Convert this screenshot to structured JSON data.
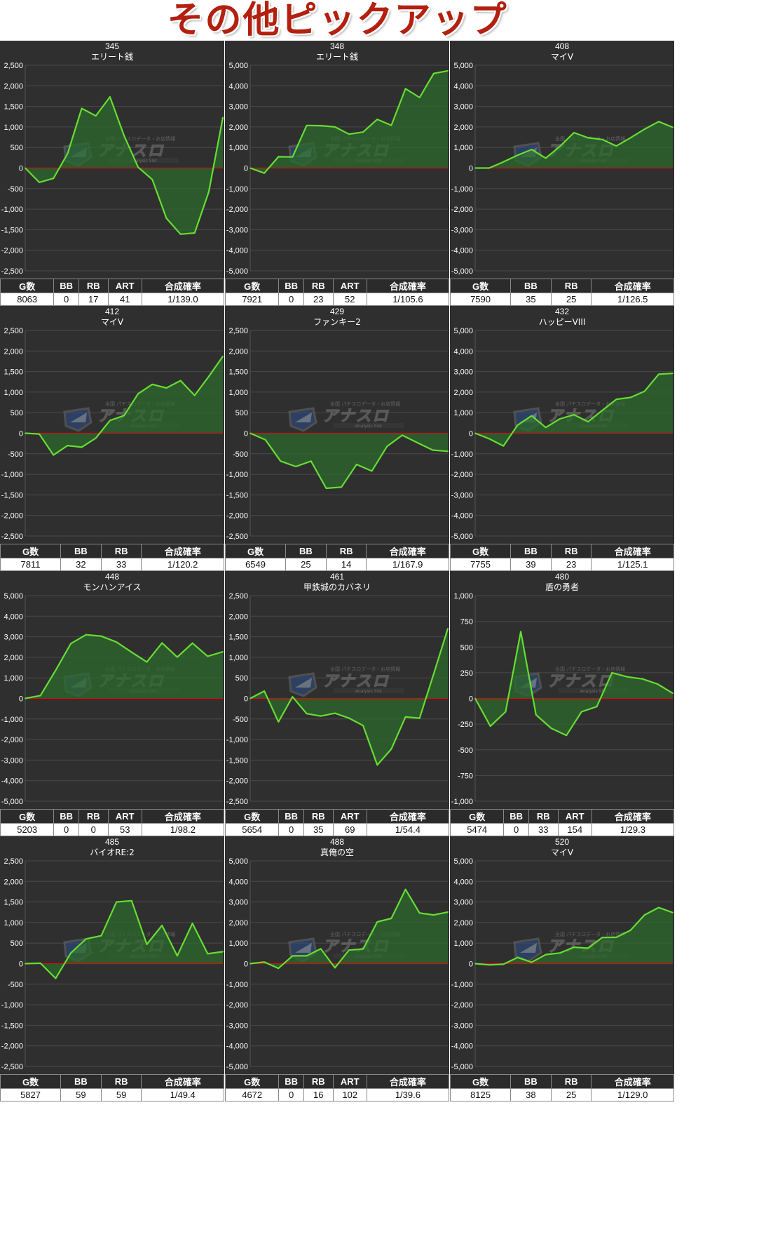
{
  "page": {
    "title": "その他ピックアップ"
  },
  "colors": {
    "line": "#66dd33",
    "fill": "#2c6a2c",
    "zero_line": "#cc1111",
    "panel_bg": "#2f2f2f",
    "grid": "#4a4a4a"
  },
  "watermark": {
    "sub1": "全国 パチスロデータ・お店情報",
    "brand": "アナスロ",
    "sub2": "Analysis Slot"
  },
  "chart_data": [
    {
      "type": "area",
      "title": "345",
      "subtitle": "エリート銭",
      "ylim": [
        -2500,
        2500
      ],
      "ticks": [
        "2,500",
        "2,000",
        "1,500",
        "1,000",
        "500",
        "0",
        "-500",
        "-1,000",
        "-1,500",
        "-2,000",
        "-2,500"
      ],
      "values": [
        0,
        -350,
        -250,
        350,
        1450,
        1270,
        1730,
        790,
        20,
        -280,
        -1220,
        -1610,
        -1580,
        -580,
        1230
      ],
      "headers": [
        "G数",
        "BB",
        "RB",
        "ART",
        "合成確率"
      ],
      "row": [
        "8063",
        "0",
        "17",
        "41",
        "1/139.0"
      ]
    },
    {
      "type": "area",
      "title": "348",
      "subtitle": "エリート銭",
      "ylim": [
        -5000,
        5000
      ],
      "ticks": [
        "5,000",
        "4,000",
        "3,000",
        "2,000",
        "1,000",
        "0",
        "-1,000",
        "-2,000",
        "-3,000",
        "-4,000",
        "-5,000"
      ],
      "values": [
        0,
        -250,
        550,
        540,
        2070,
        2060,
        2000,
        1650,
        1750,
        2370,
        2080,
        3860,
        3430,
        4600,
        4730
      ],
      "headers": [
        "G数",
        "BB",
        "RB",
        "ART",
        "合成確率"
      ],
      "row": [
        "7921",
        "0",
        "23",
        "52",
        "1/105.6"
      ]
    },
    {
      "type": "area",
      "title": "408",
      "subtitle": "マイV",
      "ylim": [
        -5000,
        5000
      ],
      "ticks": [
        "5,000",
        "4,000",
        "3,000",
        "2,000",
        "1,000",
        "0",
        "-1,000",
        "-2,000",
        "-3,000",
        "-4,000",
        "-5,000"
      ],
      "values": [
        0,
        0,
        300,
        620,
        900,
        480,
        1050,
        1720,
        1470,
        1390,
        1070,
        1470,
        1890,
        2260,
        1980
      ],
      "headers": [
        "G数",
        "BB",
        "RB",
        "合成確率"
      ],
      "row": [
        "7590",
        "35",
        "25",
        "1/126.5"
      ]
    },
    {
      "type": "area",
      "title": "412",
      "subtitle": "マイV",
      "ylim": [
        -2500,
        2500
      ],
      "ticks": [
        "2,500",
        "2,000",
        "1,500",
        "1,000",
        "500",
        "0",
        "-500",
        "-1,000",
        "-1,500",
        "-2,000",
        "-2,500"
      ],
      "values": [
        0,
        -20,
        -530,
        -300,
        -340,
        -120,
        310,
        430,
        960,
        1190,
        1100,
        1280,
        920,
        1380,
        1870
      ],
      "headers": [
        "G数",
        "BB",
        "RB",
        "合成確率"
      ],
      "row": [
        "7811",
        "32",
        "33",
        "1/120.2"
      ]
    },
    {
      "type": "area",
      "title": "429",
      "subtitle": "ファンキー2",
      "ylim": [
        -2500,
        2500
      ],
      "ticks": [
        "2,500",
        "2,000",
        "1,500",
        "1,000",
        "500",
        "0",
        "-500",
        "-1,000",
        "-1,500",
        "-2,000",
        "-2,500"
      ],
      "values": [
        0,
        -160,
        -680,
        -810,
        -680,
        -1340,
        -1310,
        -760,
        -920,
        -320,
        -50,
        -230,
        -410,
        -440
      ],
      "headers": [
        "G数",
        "BB",
        "RB",
        "合成確率"
      ],
      "row": [
        "6549",
        "25",
        "14",
        "1/167.9"
      ]
    },
    {
      "type": "area",
      "title": "432",
      "subtitle": "ハッピーVIII",
      "ylim": [
        -5000,
        5000
      ],
      "ticks": [
        "5,000",
        "4,000",
        "3,000",
        "2,000",
        "1,000",
        "0",
        "-1,000",
        "-2,000",
        "-3,000",
        "-4,000",
        "-5,000"
      ],
      "values": [
        0,
        -270,
        -620,
        390,
        850,
        280,
        700,
        900,
        560,
        1110,
        1650,
        1740,
        2040,
        2870,
        2910
      ],
      "headers": [
        "G数",
        "BB",
        "RB",
        "合成確率"
      ],
      "row": [
        "7755",
        "39",
        "23",
        "1/125.1"
      ]
    },
    {
      "type": "area",
      "title": "448",
      "subtitle": "モンハンアイス",
      "ylim": [
        -5000,
        5000
      ],
      "ticks": [
        "5,000",
        "4,000",
        "3,000",
        "2,000",
        "1,000",
        "0",
        "-1,000",
        "-2,000",
        "-3,000",
        "-4,000",
        "-5,000"
      ],
      "values": [
        0,
        140,
        1370,
        2670,
        3100,
        3030,
        2740,
        2250,
        1770,
        2700,
        2010,
        2690,
        2050,
        2270
      ],
      "headers": [
        "G数",
        "BB",
        "RB",
        "ART",
        "合成確率"
      ],
      "row": [
        "5203",
        "0",
        "0",
        "53",
        "1/98.2"
      ]
    },
    {
      "type": "area",
      "title": "461",
      "subtitle": "甲鉄城のカバネリ",
      "ylim": [
        -2500,
        2500
      ],
      "ticks": [
        "2,500",
        "2,000",
        "1,500",
        "1,000",
        "500",
        "0",
        "-500",
        "-1,000",
        "-1,500",
        "-2,000",
        "-2,500"
      ],
      "values": [
        0,
        180,
        -570,
        40,
        -370,
        -430,
        -360,
        -480,
        -660,
        -1620,
        -1230,
        -450,
        -480,
        600,
        1700
      ],
      "headers": [
        "G数",
        "BB",
        "RB",
        "ART",
        "合成確率"
      ],
      "row": [
        "5654",
        "0",
        "35",
        "69",
        "1/54.4"
      ]
    },
    {
      "type": "area",
      "title": "480",
      "subtitle": "盾の勇者",
      "ylim": [
        -1000,
        1000
      ],
      "ticks": [
        "1,000",
        "750",
        "500",
        "250",
        "0",
        "-250",
        "-500",
        "-750",
        "-1,000"
      ],
      "values": [
        0,
        -270,
        -130,
        650,
        -160,
        -290,
        -360,
        -130,
        -80,
        250,
        210,
        190,
        140,
        50
      ],
      "headers": [
        "G数",
        "BB",
        "RB",
        "ART",
        "合成確率"
      ],
      "row": [
        "5474",
        "0",
        "33",
        "154",
        "1/29.3"
      ]
    },
    {
      "type": "area",
      "title": "485",
      "subtitle": "バイオRE:2",
      "ylim": [
        -2500,
        2500
      ],
      "ticks": [
        "2,500",
        "2,000",
        "1,500",
        "1,000",
        "500",
        "0",
        "-500",
        "-1,000",
        "-1,500",
        "-2,000",
        "-2,500"
      ],
      "values": [
        0,
        10,
        -360,
        260,
        600,
        680,
        1500,
        1530,
        470,
        930,
        190,
        980,
        240,
        290
      ],
      "headers": [
        "G数",
        "BB",
        "RB",
        "合成確率"
      ],
      "row": [
        "5827",
        "59",
        "59",
        "1/49.4"
      ]
    },
    {
      "type": "area",
      "title": "488",
      "subtitle": "真俺の空",
      "ylim": [
        -5000,
        5000
      ],
      "ticks": [
        "5,000",
        "4,000",
        "3,000",
        "2,000",
        "1,000",
        "0",
        "-1,000",
        "-2,000",
        "-3,000",
        "-4,000",
        "-5,000"
      ],
      "values": [
        0,
        80,
        -230,
        380,
        380,
        720,
        -200,
        660,
        710,
        2030,
        2200,
        3610,
        2460,
        2370,
        2510
      ],
      "headers": [
        "G数",
        "BB",
        "RB",
        "ART",
        "合成確率"
      ],
      "row": [
        "4672",
        "0",
        "16",
        "102",
        "1/39.6"
      ]
    },
    {
      "type": "area",
      "title": "520",
      "subtitle": "マイV",
      "ylim": [
        -5000,
        5000
      ],
      "ticks": [
        "5,000",
        "4,000",
        "3,000",
        "2,000",
        "1,000",
        "0",
        "-1,000",
        "-2,000",
        "-3,000",
        "-4,000",
        "-5,000"
      ],
      "values": [
        0,
        -60,
        -30,
        300,
        70,
        440,
        520,
        800,
        750,
        1270,
        1280,
        1620,
        2370,
        2730,
        2480
      ],
      "headers": [
        "G数",
        "BB",
        "RB",
        "合成確率"
      ],
      "row": [
        "8125",
        "38",
        "25",
        "1/129.0"
      ]
    }
  ]
}
